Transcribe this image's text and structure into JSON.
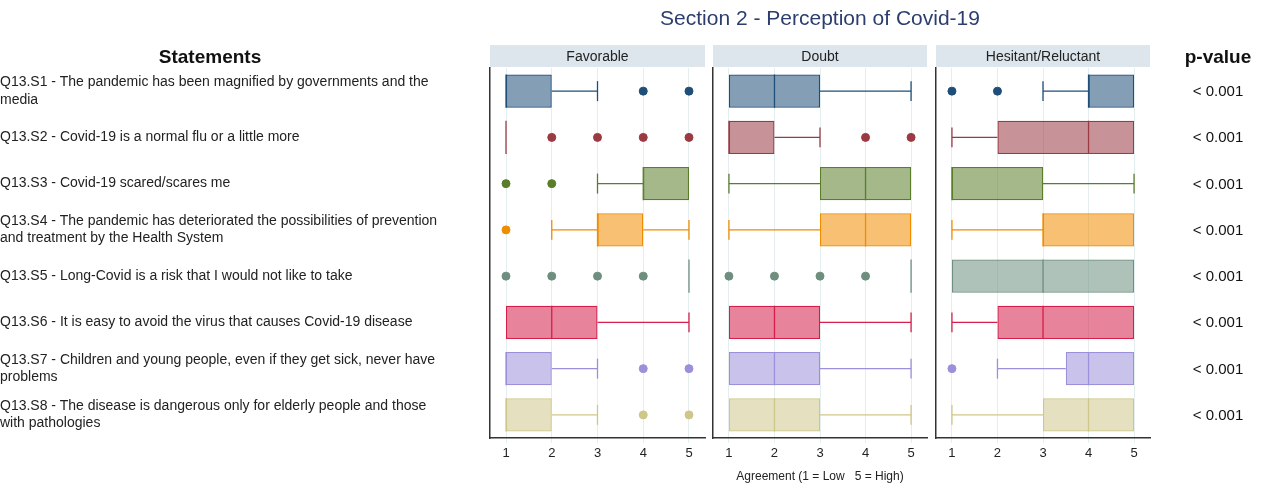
{
  "chart_data": [
    {
      "type": "box",
      "orientation": "horizontal",
      "title": "Section 2 - Perception of Covid-19",
      "subtitle": "Favorable",
      "ylabel": "Statements",
      "categories": [
        "Q13.S1 - The pandemic has been magnified by governments and the media",
        "Q13.S2 - Covid-19 is a normal flu or a little more",
        "Q13.S3 - Covid-19 scared/scares me",
        "Q13.S4 - The pandemic has deteriorated the possibilities of prevention and treatment by the Health System",
        "Q13.S5 - Long-Covid is a risk that I would not like to take",
        "Q13.S6 - It is easy to avoid the virus that causes Covid-19 disease",
        "Q13.S7 - Children and young people, even if they get sick, never have problems",
        "Q13.S8 - The disease is dangerous only for elderly people and those with pathologies"
      ],
      "boxes": [
        {
          "low": 1,
          "q1": 1,
          "median": 1,
          "q3": 2,
          "high": 3,
          "outliers": [
            4,
            5
          ]
        },
        {
          "low": 1,
          "q1": 1,
          "median": 1,
          "q3": 1,
          "high": 1,
          "outliers": [
            2,
            3,
            4,
            5
          ]
        },
        {
          "low": 3,
          "q1": 4,
          "median": 4,
          "q3": 5,
          "high": 5,
          "outliers": [
            1,
            2
          ]
        },
        {
          "low": 2,
          "q1": 3,
          "median": 3,
          "q3": 4,
          "high": 5,
          "outliers": [
            1
          ]
        },
        {
          "low": 5,
          "q1": 5,
          "median": 5,
          "q3": 5,
          "high": 5,
          "outliers": [
            1,
            2,
            3,
            4
          ]
        },
        {
          "low": 1,
          "q1": 1,
          "median": 2,
          "q3": 3,
          "high": 5
        },
        {
          "low": 1,
          "q1": 1,
          "median": 1,
          "q3": 2,
          "high": 3,
          "outliers": [
            4,
            5
          ]
        },
        {
          "low": 1,
          "q1": 1,
          "median": 1,
          "q3": 2,
          "high": 3,
          "outliers": [
            4,
            5
          ]
        }
      ],
      "colors": [
        "#1f4e79",
        "#9b3a43",
        "#5a7d2a",
        "#f08c00",
        "#6e8f80",
        "#d41f4a",
        "#9d90da",
        "#cfc68a"
      ],
      "xlim": [
        0.65,
        5.35
      ],
      "xticks": [
        1,
        2,
        3,
        4,
        5
      ],
      "grid": "x",
      "marker": "circle"
    },
    {
      "type": "box",
      "orientation": "horizontal",
      "subtitle": "Doubt",
      "xlabel": "Agreement (1 = Low   5 = High)",
      "boxes": [
        {
          "low": 1,
          "q1": 1,
          "median": 2,
          "q3": 3,
          "high": 5
        },
        {
          "low": 1,
          "q1": 1,
          "median": 1,
          "q3": 2,
          "high": 3,
          "outliers": [
            4,
            5
          ]
        },
        {
          "low": 1,
          "q1": 3,
          "median": 4,
          "q3": 5,
          "high": 5
        },
        {
          "low": 1,
          "q1": 3,
          "median": 4,
          "q3": 5,
          "high": 5
        },
        {
          "low": 5,
          "q1": 5,
          "median": 5,
          "q3": 5,
          "high": 5,
          "outliers": [
            1,
            2,
            3,
            4
          ]
        },
        {
          "low": 1,
          "q1": 1,
          "median": 2,
          "q3": 3,
          "high": 5
        },
        {
          "low": 1,
          "q1": 1,
          "median": 2,
          "q3": 3,
          "high": 5
        },
        {
          "low": 1,
          "q1": 1,
          "median": 2,
          "q3": 3,
          "high": 5
        }
      ],
      "colors": [
        "#1f4e79",
        "#9b3a43",
        "#5a7d2a",
        "#f08c00",
        "#6e8f80",
        "#d41f4a",
        "#9d90da",
        "#cfc68a"
      ],
      "xlim": [
        0.65,
        5.35
      ],
      "xticks": [
        1,
        2,
        3,
        4,
        5
      ],
      "grid": "x",
      "marker": "circle",
      "tick_labels": "x"
    },
    {
      "type": "box",
      "orientation": "horizontal",
      "subtitle": "Hesitant/Reluctant",
      "boxes": [
        {
          "low": 3,
          "q1": 4,
          "median": 4,
          "q3": 5,
          "high": 5,
          "outliers": [
            1,
            2
          ]
        },
        {
          "low": 1,
          "q1": 2,
          "median": 4,
          "q3": 5,
          "high": 5
        },
        {
          "low": 1,
          "q1": 1,
          "median": 1,
          "q3": 3,
          "high": 5
        },
        {
          "low": 1,
          "q1": 3,
          "median": 3,
          "q3": 5,
          "high": 5
        },
        {
          "low": 1,
          "q1": 1,
          "median": 3,
          "q3": 5,
          "high": 5
        },
        {
          "low": 1,
          "q1": 2,
          "median": 3,
          "q3": 5,
          "high": 5
        },
        {
          "low": 2,
          "q1": 3.5,
          "median": 4,
          "q3": 5,
          "high": 5,
          "outliers": [
            1
          ]
        },
        {
          "low": 1,
          "q1": 3,
          "median": 4,
          "q3": 5,
          "high": 5
        }
      ],
      "colors": [
        "#1f4e79",
        "#9b3a43",
        "#5a7d2a",
        "#f08c00",
        "#6e8f80",
        "#d41f4a",
        "#9d90da",
        "#cfc68a"
      ],
      "xlim": [
        0.65,
        5.35
      ],
      "xticks": [
        1,
        2,
        3,
        4,
        5
      ],
      "grid": "x",
      "marker": "circle",
      "tick_labels": "x",
      "annotations": [
        "p-value",
        "< 0.001",
        "< 0.001",
        "< 0.001",
        "< 0.001",
        "< 0.001",
        "< 0.001",
        "< 0.001",
        "< 0.001"
      ]
    }
  ]
}
